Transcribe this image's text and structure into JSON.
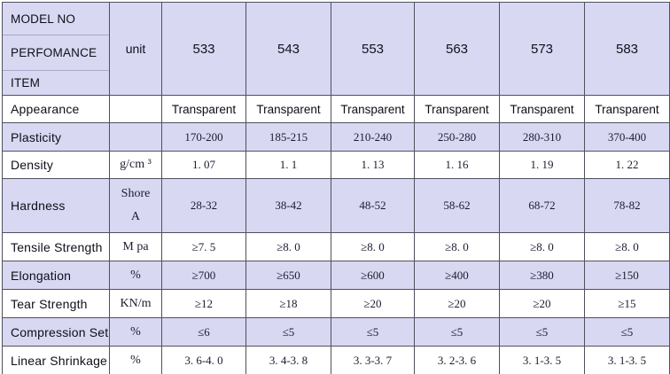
{
  "table_title": "rubber-compound-spec-table",
  "colors": {
    "stripe_bg": "#d8d8f2",
    "plain_bg": "#ffffff",
    "grid_line": "#50505e",
    "corner_divider_line": "#a9a9c6",
    "label_text": "#0e0e18",
    "value_text": "#1c1c30"
  },
  "header": {
    "corner": [
      "MODEL NO",
      "PERFOMANCE",
      "ITEM"
    ],
    "unit_label": "unit",
    "models": [
      "533",
      "543",
      "553",
      "563",
      "573",
      "583"
    ]
  },
  "rows": [
    {
      "label": "Appearance",
      "unit": "",
      "values": [
        "Transparent",
        "Transparent",
        "Transparent",
        "Transparent",
        "Transparent",
        "Transparent"
      ]
    },
    {
      "label": "Plasticity",
      "unit": "",
      "values": [
        "170-200",
        "185-215",
        "210-240",
        "250-280",
        "280-310",
        "370-400"
      ]
    },
    {
      "label": "Density",
      "unit": "g/cm ³",
      "values": [
        "1. 07",
        "1. 1",
        "1. 13",
        "1. 16",
        "1. 19",
        "1. 22"
      ]
    },
    {
      "label": "Hardness",
      "unit": "Shore\nA",
      "values": [
        "28-32",
        "38-42",
        "48-52",
        "58-62",
        "68-72",
        "78-82"
      ]
    },
    {
      "label": "Tensile Strength",
      "unit": "M pa",
      "values": [
        "≥7. 5",
        "≥8. 0",
        "≥8. 0",
        "≥8. 0",
        "≥8. 0",
        "≥8. 0"
      ]
    },
    {
      "label": "Elongation",
      "unit": "%",
      "values": [
        "≥700",
        "≥650",
        "≥600",
        "≥400",
        "≥380",
        "≥150"
      ]
    },
    {
      "label": "Tear Strength",
      "unit": "KN/m",
      "values": [
        "≥12",
        "≥18",
        "≥20",
        "≥20",
        "≥20",
        "≥15"
      ]
    },
    {
      "label": "Compression Set",
      "unit": "%",
      "values": [
        "≤6",
        "≤5",
        "≤5",
        "≤5",
        "≤5",
        "≤5"
      ]
    },
    {
      "label": "Linear Shrinkage",
      "unit": "%",
      "values": [
        "3. 6-4. 0",
        "3. 4-3. 8",
        "3. 3-3. 7",
        "3. 2-3. 6",
        "3. 1-3. 5",
        "3. 1-3. 5"
      ]
    }
  ]
}
